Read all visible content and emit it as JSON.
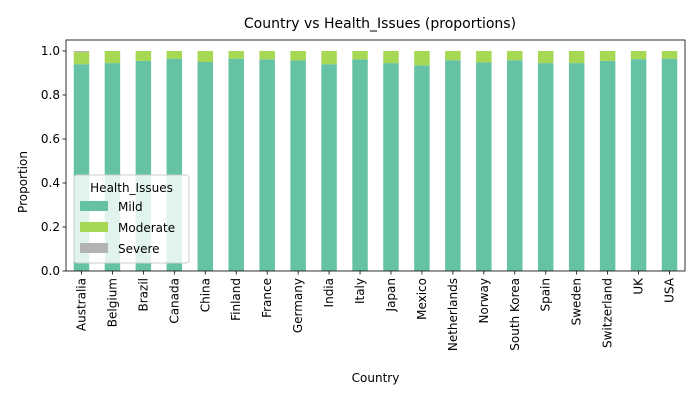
{
  "chart_data": {
    "type": "bar",
    "stacked": true,
    "title": "Country vs Health_Issues (proportions)",
    "xlabel": "Country",
    "ylabel": "Proportion",
    "ylim": [
      0,
      1.05
    ],
    "yticks": [
      0.0,
      0.2,
      0.4,
      0.6,
      0.8,
      1.0
    ],
    "ytick_labels": [
      "0.0",
      "0.2",
      "0.4",
      "0.6",
      "0.8",
      "1.0"
    ],
    "grid": false,
    "legend": {
      "title": "Health_Issues",
      "placement": "lower-left"
    },
    "categories": [
      "Australia",
      "Belgium",
      "Brazil",
      "Canada",
      "China",
      "Finland",
      "France",
      "Germany",
      "India",
      "Italy",
      "Japan",
      "Mexico",
      "Netherlands",
      "Norway",
      "South Korea",
      "Spain",
      "Sweden",
      "Switzerland",
      "UK",
      "USA"
    ],
    "series": [
      {
        "name": "Mild",
        "color": "#66c2a5",
        "values": [
          0.94,
          0.945,
          0.955,
          0.965,
          0.95,
          0.965,
          0.962,
          0.957,
          0.94,
          0.962,
          0.945,
          0.935,
          0.958,
          0.948,
          0.958,
          0.945,
          0.945,
          0.955,
          0.963,
          0.965
        ]
      },
      {
        "name": "Moderate",
        "color": "#a6d854",
        "values": [
          0.055,
          0.055,
          0.045,
          0.035,
          0.05,
          0.035,
          0.038,
          0.043,
          0.06,
          0.038,
          0.055,
          0.065,
          0.042,
          0.052,
          0.042,
          0.055,
          0.055,
          0.045,
          0.037,
          0.035
        ]
      },
      {
        "name": "Severe",
        "color": "#b3b3b3",
        "values": [
          0.005,
          0,
          0,
          0,
          0,
          0,
          0,
          0,
          0,
          0,
          0,
          0,
          0,
          0,
          0,
          0,
          0,
          0,
          0,
          0
        ]
      }
    ]
  }
}
